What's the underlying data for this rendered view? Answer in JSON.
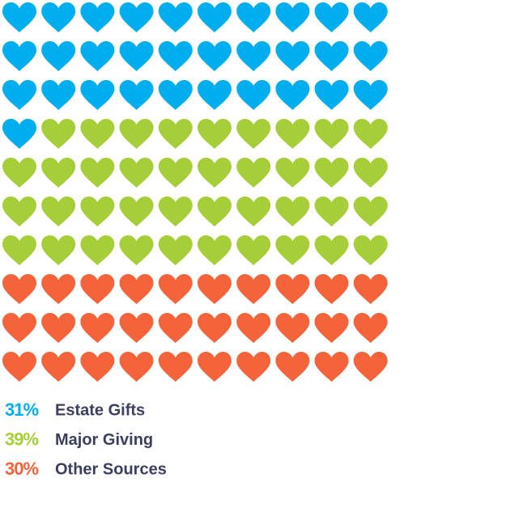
{
  "chart_data": {
    "type": "waffle",
    "categories": [
      "Estate Gifts",
      "Major Giving",
      "Other Sources"
    ],
    "values": [
      31,
      39,
      30
    ],
    "value_labels": [
      "31%",
      "39%",
      "30%"
    ],
    "colors": [
      "#00aeef",
      "#a6ce39",
      "#f4633a"
    ]
  }
}
